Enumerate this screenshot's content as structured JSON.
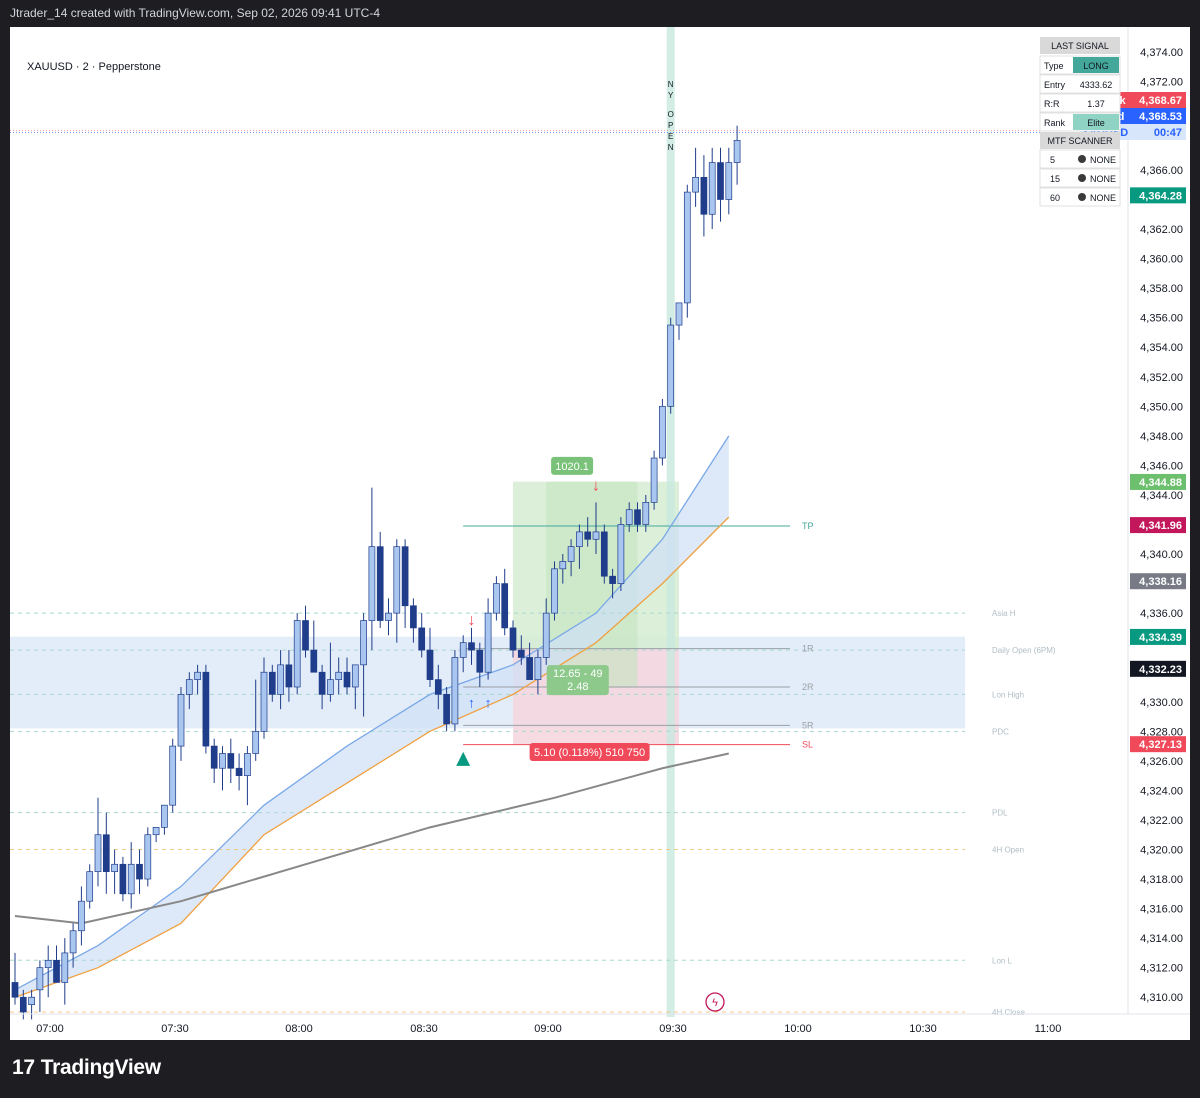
{
  "header_text": "Jtrader_14 created with TradingView.com, Sep 02, 2026 09:41 UTC-4",
  "symbol_line": "XAUUSD · 2 · Pepperstone",
  "brand": "TradingView",
  "colors": {
    "up_candle": "#a9c6f0",
    "down_candle": "#1f3d8a",
    "tp_green": "#7ac27a",
    "sl_red": "#f04a5a",
    "accent_teal": "#43a899"
  },
  "chart_data": {
    "type": "candlestick",
    "x_label": "",
    "y_label": "",
    "ylim": [
      4309,
      4375
    ],
    "y_ticks": [
      "4,374.00",
      "4,372.00",
      "4,366.00",
      "4,362.00",
      "4,360.00",
      "4,358.00",
      "4,356.00",
      "4,354.00",
      "4,352.00",
      "4,350.00",
      "4,348.00",
      "4,346.00",
      "4,344.00",
      "4,340.00",
      "4,336.00",
      "4,330.00",
      "4,328.00",
      "4,326.00",
      "4,324.00",
      "4,322.00",
      "4,320.00",
      "4,318.00",
      "4,316.00",
      "4,314.00",
      "4,312.00",
      "4,310.00"
    ],
    "x_ticks": [
      "07:00",
      "07:30",
      "08:00",
      "08:30",
      "09:00",
      "09:30",
      "10:00",
      "10:30",
      "11:00"
    ],
    "candles": [
      [
        4311.0,
        4313.0,
        4309.5,
        4310.0
      ],
      [
        4310.0,
        4310.5,
        4308.5,
        4309.0
      ],
      [
        4309.5,
        4310.5,
        4308.5,
        4310.0
      ],
      [
        4310.5,
        4312.5,
        4309.0,
        4312.0
      ],
      [
        4312.0,
        4313.5,
        4310.0,
        4312.5
      ],
      [
        4312.5,
        4313.5,
        4311.5,
        4311.0
      ],
      [
        4311.0,
        4314.0,
        4309.5,
        4313.0
      ],
      [
        4313.0,
        4315.0,
        4312.0,
        4314.5
      ],
      [
        4314.5,
        4317.5,
        4313.5,
        4316.5
      ],
      [
        4316.5,
        4319.0,
        4316.0,
        4318.5
      ],
      [
        4318.5,
        4323.5,
        4317.5,
        4321.0
      ],
      [
        4321.0,
        4322.5,
        4317.0,
        4318.5
      ],
      [
        4318.5,
        4320.0,
        4317.0,
        4319.0
      ],
      [
        4319.0,
        4319.5,
        4316.5,
        4317.0
      ],
      [
        4317.0,
        4320.5,
        4316.0,
        4319.0
      ],
      [
        4319.0,
        4320.0,
        4317.0,
        4318.0
      ],
      [
        4318.0,
        4321.5,
        4317.5,
        4321.0
      ],
      [
        4321.0,
        4321.5,
        4320.5,
        4321.5
      ],
      [
        4321.5,
        4323.0,
        4321.0,
        4323.0
      ],
      [
        4323.0,
        4327.5,
        4322.5,
        4327.0
      ],
      [
        4327.0,
        4331.0,
        4326.0,
        4330.5
      ],
      [
        4330.5,
        4332.0,
        4329.5,
        4331.5
      ],
      [
        4331.5,
        4332.5,
        4330.5,
        4332.0
      ],
      [
        4332.0,
        4332.5,
        4326.5,
        4327.0
      ],
      [
        4327.0,
        4327.5,
        4324.5,
        4325.5
      ],
      [
        4325.5,
        4327.0,
        4324.0,
        4326.5
      ],
      [
        4326.5,
        4327.5,
        4324.5,
        4325.5
      ],
      [
        4325.5,
        4326.5,
        4324.0,
        4325.0
      ],
      [
        4325.0,
        4327.0,
        4323.0,
        4326.5
      ],
      [
        4326.5,
        4331.5,
        4326.0,
        4328.0
      ],
      [
        4328.0,
        4333.0,
        4327.5,
        4332.0
      ],
      [
        4332.0,
        4332.5,
        4330.0,
        4330.5
      ],
      [
        4330.5,
        4333.5,
        4329.5,
        4332.5
      ],
      [
        4332.5,
        4333.5,
        4330.0,
        4331.0
      ],
      [
        4331.0,
        4336.0,
        4330.5,
        4335.5
      ],
      [
        4335.5,
        4336.5,
        4333.0,
        4333.5
      ],
      [
        4333.5,
        4335.5,
        4332.5,
        4332.0
      ],
      [
        4332.0,
        4332.5,
        4329.5,
        4330.5
      ],
      [
        4330.5,
        4334.0,
        4330.0,
        4331.5
      ],
      [
        4331.5,
        4333.0,
        4330.5,
        4332.0
      ],
      [
        4332.0,
        4333.0,
        4330.5,
        4331.0
      ],
      [
        4331.0,
        4332.5,
        4329.5,
        4332.5
      ],
      [
        4332.5,
        4336.0,
        4329.0,
        4335.5
      ],
      [
        4335.5,
        4344.5,
        4333.5,
        4340.5
      ],
      [
        4340.5,
        4341.5,
        4335.0,
        4335.5
      ],
      [
        4335.5,
        4337.0,
        4334.5,
        4336.0
      ],
      [
        4336.0,
        4341.0,
        4334.0,
        4340.5
      ],
      [
        4340.5,
        4341.0,
        4335.0,
        4336.5
      ],
      [
        4336.5,
        4337.0,
        4334.0,
        4335.0
      ],
      [
        4335.0,
        4336.0,
        4333.0,
        4333.5
      ],
      [
        4333.5,
        4335.0,
        4331.0,
        4331.5
      ],
      [
        4331.5,
        4332.5,
        4329.5,
        4330.5
      ],
      [
        4330.5,
        4331.0,
        4328.0,
        4328.5
      ],
      [
        4328.5,
        4333.5,
        4328.0,
        4333.0
      ],
      [
        4333.0,
        4334.5,
        4332.0,
        4334.0
      ],
      [
        4334.0,
        4335.0,
        4332.5,
        4333.5
      ],
      [
        4333.5,
        4334.0,
        4331.0,
        4332.0
      ],
      [
        4332.0,
        4337.0,
        4331.5,
        4336.0
      ],
      [
        4336.0,
        4338.5,
        4335.5,
        4338.0
      ],
      [
        4338.0,
        4339.0,
        4334.5,
        4335.0
      ],
      [
        4335.0,
        4335.5,
        4333.0,
        4333.5
      ],
      [
        4333.5,
        4334.5,
        4332.5,
        4333.0
      ],
      [
        4333.0,
        4334.0,
        4331.5,
        4331.5
      ],
      [
        4331.5,
        4333.5,
        4330.5,
        4333.0
      ],
      [
        4333.0,
        4337.0,
        4332.5,
        4336.0
      ],
      [
        4336.0,
        4339.5,
        4335.5,
        4339.0
      ],
      [
        4339.0,
        4340.0,
        4338.0,
        4339.5
      ],
      [
        4339.5,
        4341.0,
        4338.5,
        4340.5
      ],
      [
        4340.5,
        4342.0,
        4339.0,
        4341.5
      ],
      [
        4341.5,
        4342.5,
        4340.5,
        4341.0
      ],
      [
        4341.0,
        4343.5,
        4340.0,
        4341.5
      ],
      [
        4341.5,
        4342.0,
        4338.0,
        4338.5
      ],
      [
        4338.5,
        4339.0,
        4337.0,
        4338.0
      ],
      [
        4338.0,
        4342.5,
        4337.5,
        4342.0
      ],
      [
        4342.0,
        4343.5,
        4341.5,
        4343.0
      ],
      [
        4343.0,
        4343.5,
        4341.5,
        4342.0
      ],
      [
        4342.0,
        4344.0,
        4341.5,
        4343.5
      ],
      [
        4343.5,
        4347.0,
        4343.0,
        4346.5
      ],
      [
        4346.5,
        4350.5,
        4346.0,
        4350.0
      ],
      [
        4350.0,
        4356.0,
        4349.5,
        4355.5
      ],
      [
        4355.5,
        4357.0,
        4354.5,
        4357.0
      ],
      [
        4357.0,
        4365.0,
        4356.0,
        4364.5
      ],
      [
        4364.5,
        4367.5,
        4363.5,
        4365.5
      ],
      [
        4365.5,
        4367.0,
        4361.5,
        4363.0
      ],
      [
        4363.0,
        4367.5,
        4362.0,
        4366.5
      ],
      [
        4366.5,
        4367.5,
        4362.5,
        4364.0
      ],
      [
        4364.0,
        4367.5,
        4363.0,
        4366.5
      ],
      [
        4366.5,
        4369.0,
        4365.0,
        4368.0
      ]
    ],
    "moving_averages": [
      {
        "name": "",
        "color": "#f0a040",
        "points": [
          [
            0,
            4310.0
          ],
          [
            10,
            4312.0
          ],
          [
            20,
            4315.0
          ],
          [
            30,
            4321.0
          ],
          [
            40,
            4324.5
          ],
          [
            50,
            4328.0
          ],
          [
            60,
            4330.5
          ],
          [
            70,
            4334.0
          ],
          [
            78,
            4338.0
          ],
          [
            86,
            4342.5
          ]
        ]
      },
      {
        "name": "",
        "color": "#7aa8e8",
        "points": [
          [
            0,
            4310.5
          ],
          [
            10,
            4313.5
          ],
          [
            20,
            4317.5
          ],
          [
            30,
            4323.0
          ],
          [
            40,
            4327.0
          ],
          [
            50,
            4330.5
          ],
          [
            60,
            4332.5
          ],
          [
            70,
            4336.0
          ],
          [
            78,
            4341.0
          ],
          [
            86,
            4348.0
          ]
        ]
      },
      {
        "name": "",
        "color": "#888888",
        "points": [
          [
            0,
            4315.5
          ],
          [
            8,
            4315.0
          ],
          [
            20,
            4316.5
          ],
          [
            35,
            4319.0
          ],
          [
            50,
            4321.5
          ],
          [
            65,
            4323.5
          ],
          [
            78,
            4325.5
          ],
          [
            86,
            4326.5
          ]
        ]
      }
    ],
    "price_tags": [
      {
        "label": "Ask",
        "value": "4,368.67",
        "color": "#f04a5a"
      },
      {
        "label": "Bid",
        "value": "4,368.53",
        "color": "#2962ff"
      },
      {
        "label": "XAUUSD",
        "value": "00:47",
        "color": "#d8e6fb"
      },
      {
        "label": "",
        "value": "4,364.28",
        "color": "#089981"
      },
      {
        "label": "",
        "value": "4,344.88",
        "color": "#6cbf6c"
      },
      {
        "label": "",
        "value": "4,341.96",
        "color": "#c2185b"
      },
      {
        "label": "",
        "value": "4,338.16",
        "color": "#787b86"
      },
      {
        "label": "",
        "value": "4,334.39",
        "color": "#089981"
      },
      {
        "label": "",
        "value": "4,332.23",
        "color": "#131722"
      },
      {
        "label": "",
        "value": "4,327.13",
        "color": "#f04a5a"
      }
    ],
    "levels": [
      {
        "label": "TP",
        "value": 4341.9
      },
      {
        "label": "1R",
        "value": 4333.6
      },
      {
        "label": "2R",
        "value": 4331.0
      },
      {
        "label": "5R",
        "value": 4328.4
      },
      {
        "label": "SL",
        "value": 4327.1
      }
    ],
    "key_levels": [
      {
        "label": "Asia H",
        "value": 4336.0
      },
      {
        "label": "Daily Open (6PM)",
        "value": 4333.5
      },
      {
        "label": "Lon High",
        "value": 4330.5
      },
      {
        "label": "PDC",
        "value": 4328.0
      },
      {
        "label": "PDL",
        "value": 4322.5
      },
      {
        "label": "4H Open",
        "value": 4320.0
      },
      {
        "label": "Lon L",
        "value": 4312.5
      },
      {
        "label": "4H Close",
        "value": 4309.0
      }
    ],
    "position_labels": {
      "tp_label": "1020.1",
      "mid_label_1": "12.65 - 49",
      "mid_label_2": "2.48",
      "sl_label": "5.10 (0.118%) 510 750"
    },
    "session_marker": "NY OPEN",
    "signal_table": {
      "title": "LAST SIGNAL",
      "rows": [
        {
          "k": "Type",
          "v": "LONG"
        },
        {
          "k": "Entry",
          "v": "4333.62"
        },
        {
          "k": "R:R",
          "v": "1.37"
        },
        {
          "k": "Rank",
          "v": "Elite"
        }
      ],
      "scanner_title": "MTF SCANNER",
      "scanner_rows": [
        {
          "k": "5",
          "v": "NONE"
        },
        {
          "k": "15",
          "v": "NONE"
        },
        {
          "k": "60",
          "v": "NONE"
        }
      ]
    }
  }
}
